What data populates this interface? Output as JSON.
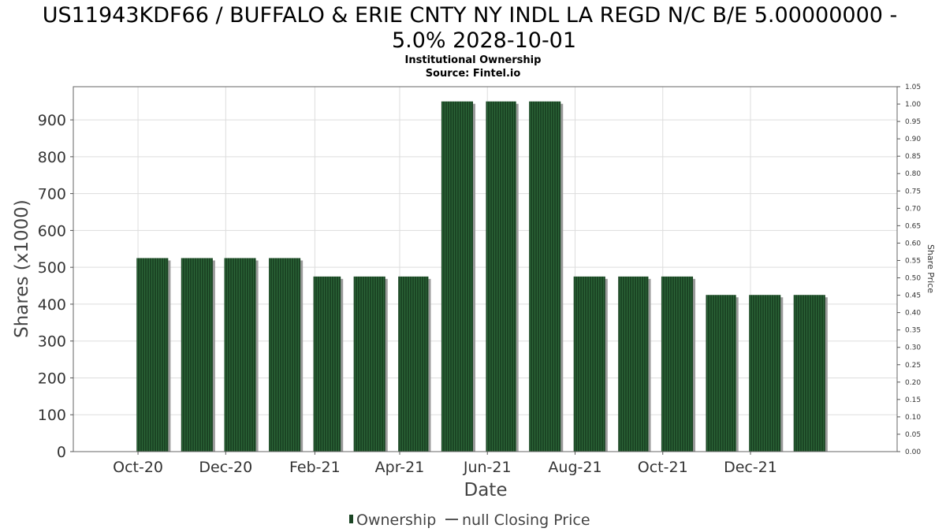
{
  "colors": {
    "bar": "#1b4524",
    "bar_stripe": "#2c6638",
    "bar_shadow": "#9a9a9a",
    "grid": "#dddddd",
    "axis": "#555555"
  },
  "chart_data": {
    "type": "bar",
    "title_line1": "US11943KDF66 / BUFFALO & ERIE CNTY NY INDL LA REGD N/C B/E 5.00000000 -",
    "title_line2": "5.0% 2028-10-01",
    "subtitle_line1": "Institutional Ownership",
    "subtitle_line2": "Source: Fintel.io",
    "xlabel": "Date",
    "ylabel": "Shares (x1000)",
    "ylabel_right": "Share Price",
    "ylim": [
      0,
      990
    ],
    "y_ticks": [
      0,
      100,
      200,
      300,
      400,
      500,
      600,
      700,
      800,
      900
    ],
    "ylim_right": [
      0,
      1.05
    ],
    "y_ticks_right": [
      "0.00",
      "0.05",
      "0.10",
      "0.15",
      "0.20",
      "0.25",
      "0.30",
      "0.35",
      "0.40",
      "0.45",
      "0.50",
      "0.55",
      "0.60",
      "0.65",
      "0.70",
      "0.75",
      "0.80",
      "0.85",
      "0.90",
      "0.95",
      "1.00",
      "1.05"
    ],
    "x_ticks": [
      "Oct-20",
      "Dec-20",
      "Feb-21",
      "Apr-21",
      "Jun-21",
      "Aug-21",
      "Oct-21",
      "Dec-21"
    ],
    "x_range": [
      "2020-08-17",
      "2022-03-13"
    ],
    "series": [
      {
        "name": "Ownership",
        "bars": [
          {
            "start": "2020-09-30",
            "end": "2020-10-22",
            "value": 525
          },
          {
            "start": "2020-10-31",
            "end": "2020-11-22",
            "value": 525
          },
          {
            "start": "2020-11-30",
            "end": "2020-12-22",
            "value": 525
          },
          {
            "start": "2020-12-31",
            "end": "2021-01-22",
            "value": 525
          },
          {
            "start": "2021-01-31",
            "end": "2021-02-19",
            "value": 475
          },
          {
            "start": "2021-02-28",
            "end": "2021-03-22",
            "value": 475
          },
          {
            "start": "2021-03-31",
            "end": "2021-04-21",
            "value": 475
          },
          {
            "start": "2021-04-30",
            "end": "2021-05-22",
            "value": 950
          },
          {
            "start": "2021-05-31",
            "end": "2021-06-21",
            "value": 950
          },
          {
            "start": "2021-06-30",
            "end": "2021-07-22",
            "value": 950
          },
          {
            "start": "2021-07-31",
            "end": "2021-08-22",
            "value": 475
          },
          {
            "start": "2021-08-31",
            "end": "2021-09-21",
            "value": 475
          },
          {
            "start": "2021-09-30",
            "end": "2021-10-22",
            "value": 475
          },
          {
            "start": "2021-10-31",
            "end": "2021-11-21",
            "value": 425
          },
          {
            "start": "2021-11-30",
            "end": "2021-12-22",
            "value": 425
          },
          {
            "start": "2021-12-31",
            "end": "2022-01-22",
            "value": 425
          }
        ]
      }
    ],
    "legend": {
      "position": "bottom-center",
      "items": [
        "Ownership",
        "null Closing Price"
      ]
    },
    "grid": true
  }
}
